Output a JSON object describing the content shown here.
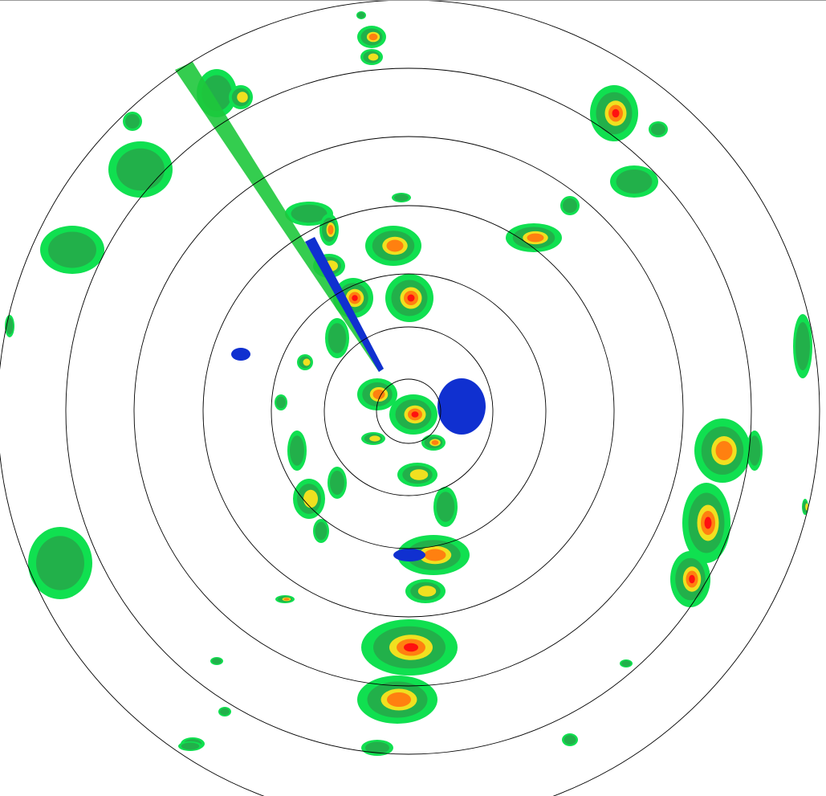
{
  "display": {
    "type": "radar-ppi",
    "range_rings": 7,
    "colors": {
      "background": "#ffffff",
      "ring": "#000000",
      "weak": "#1030d0",
      "light": "#1ec83c",
      "moderate": "#10e050",
      "heavy": "#f0e020",
      "intense": "#ff8010",
      "extreme": "#ff1010"
    }
  }
}
